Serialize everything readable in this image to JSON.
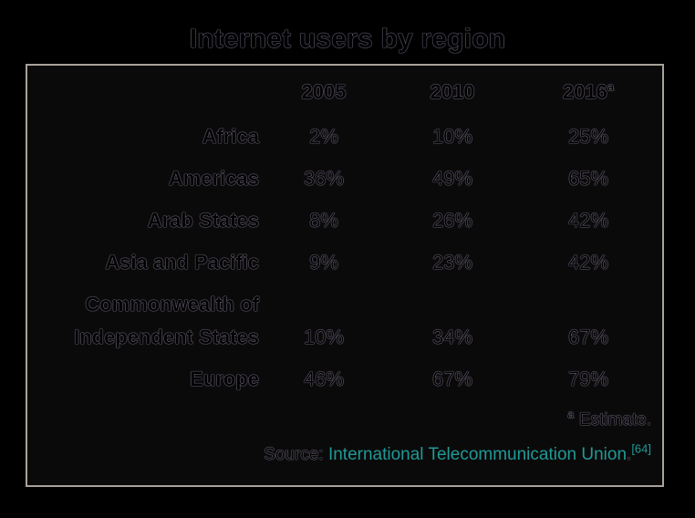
{
  "title": "Internet users by region",
  "columns": [
    {
      "label": "2005",
      "marker": ""
    },
    {
      "label": "2010",
      "marker": ""
    },
    {
      "label": "2016",
      "marker": "a"
    }
  ],
  "rows": [
    {
      "region": "Africa",
      "values": [
        "2%",
        "10%",
        "25%"
      ]
    },
    {
      "region": "Americas",
      "values": [
        "36%",
        "49%",
        "65%"
      ]
    },
    {
      "region": "Arab States",
      "values": [
        "8%",
        "26%",
        "42%"
      ]
    },
    {
      "region": "Asia and Pacific",
      "values": [
        "9%",
        "23%",
        "42%"
      ]
    },
    {
      "region_line1": "Commonwealth of",
      "region_line2": "Independent States",
      "values": [
        "10%",
        "34%",
        "67%"
      ]
    },
    {
      "region": "Europe",
      "values": [
        "46%",
        "67%",
        "79%"
      ]
    }
  ],
  "footnote": {
    "marker": "a",
    "text": " Estimate."
  },
  "source": {
    "prefix": "Source: ",
    "link_text": "International Telecommunication Union",
    "suffix": ".",
    "ref": "[64]"
  },
  "colors": {
    "background": "#000000",
    "box_border": "#a8a29a",
    "link": "#1f9a97"
  }
}
